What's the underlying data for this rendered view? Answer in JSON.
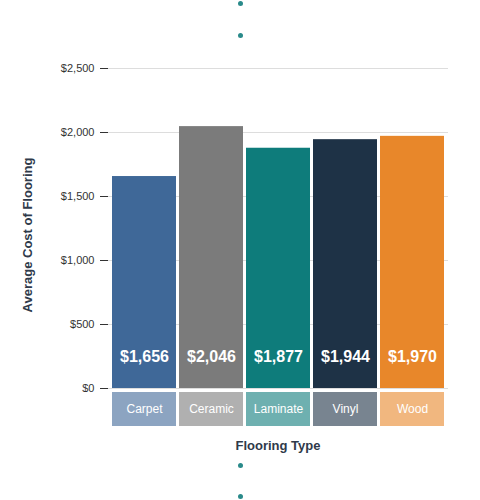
{
  "chart_data": {
    "type": "bar",
    "x_label": "Flooring Type",
    "y_label": "Average Cost of Flooring",
    "categories": [
      "Carpet",
      "Ceramic",
      "Laminate",
      "Vinyl",
      "Wood"
    ],
    "values": [
      1656,
      2046,
      1877,
      1944,
      1970
    ],
    "value_labels": [
      "$1,656",
      "$2,046",
      "$1,877",
      "$1,944",
      "$1,970"
    ],
    "colors": [
      "#3f6898",
      "#7b7b7b",
      "#0e7c7b",
      "#1e3246",
      "#e8872a"
    ],
    "ylim": [
      0,
      2500
    ],
    "yticks": [
      {
        "value": 0,
        "label": "$0"
      },
      {
        "value": 500,
        "label": "$500"
      },
      {
        "value": 1000,
        "label": "$1,000"
      },
      {
        "value": 1500,
        "label": "$1,500"
      },
      {
        "value": 2000,
        "label": "$2,000"
      },
      {
        "value": 2500,
        "label": "$2,500"
      }
    ],
    "grid": true,
    "data_labels": true
  }
}
